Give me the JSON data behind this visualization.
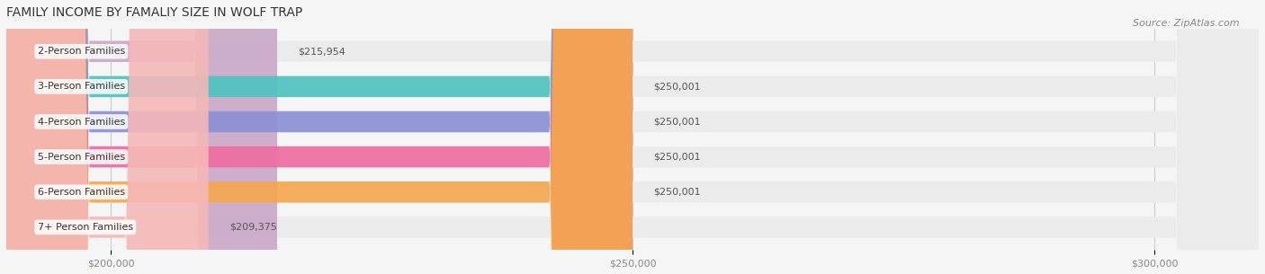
{
  "title": "FAMILY INCOME BY FAMALIY SIZE IN WOLF TRAP",
  "source": "Source: ZipAtlas.com",
  "categories": [
    "2-Person Families",
    "3-Person Families",
    "4-Person Families",
    "5-Person Families",
    "6-Person Families",
    "7+ Person Families"
  ],
  "values": [
    215954,
    250001,
    250001,
    250001,
    250001,
    209375
  ],
  "bar_colors": [
    "#c9a8c8",
    "#4dc4be",
    "#8b8fd4",
    "#f06ba0",
    "#f5a74d",
    "#f5b8b8"
  ],
  "label_texts": [
    "$215,954",
    "$250,001",
    "$250,001",
    "$250,001",
    "$250,001",
    "$209,375"
  ],
  "x_min": 190000,
  "x_max": 310000,
  "x_ticks": [
    200000,
    250000,
    300000
  ],
  "x_tick_labels": [
    "$200,000",
    "$250,000",
    "$300,000"
  ],
  "background_color": "#f5f5f5",
  "bar_bg_color": "#ebebeb",
  "title_fontsize": 10,
  "source_fontsize": 8,
  "label_fontsize": 8,
  "bar_height": 0.6,
  "bar_label_color": "#555555",
  "category_label_color": "#333333",
  "category_fontsize": 8
}
